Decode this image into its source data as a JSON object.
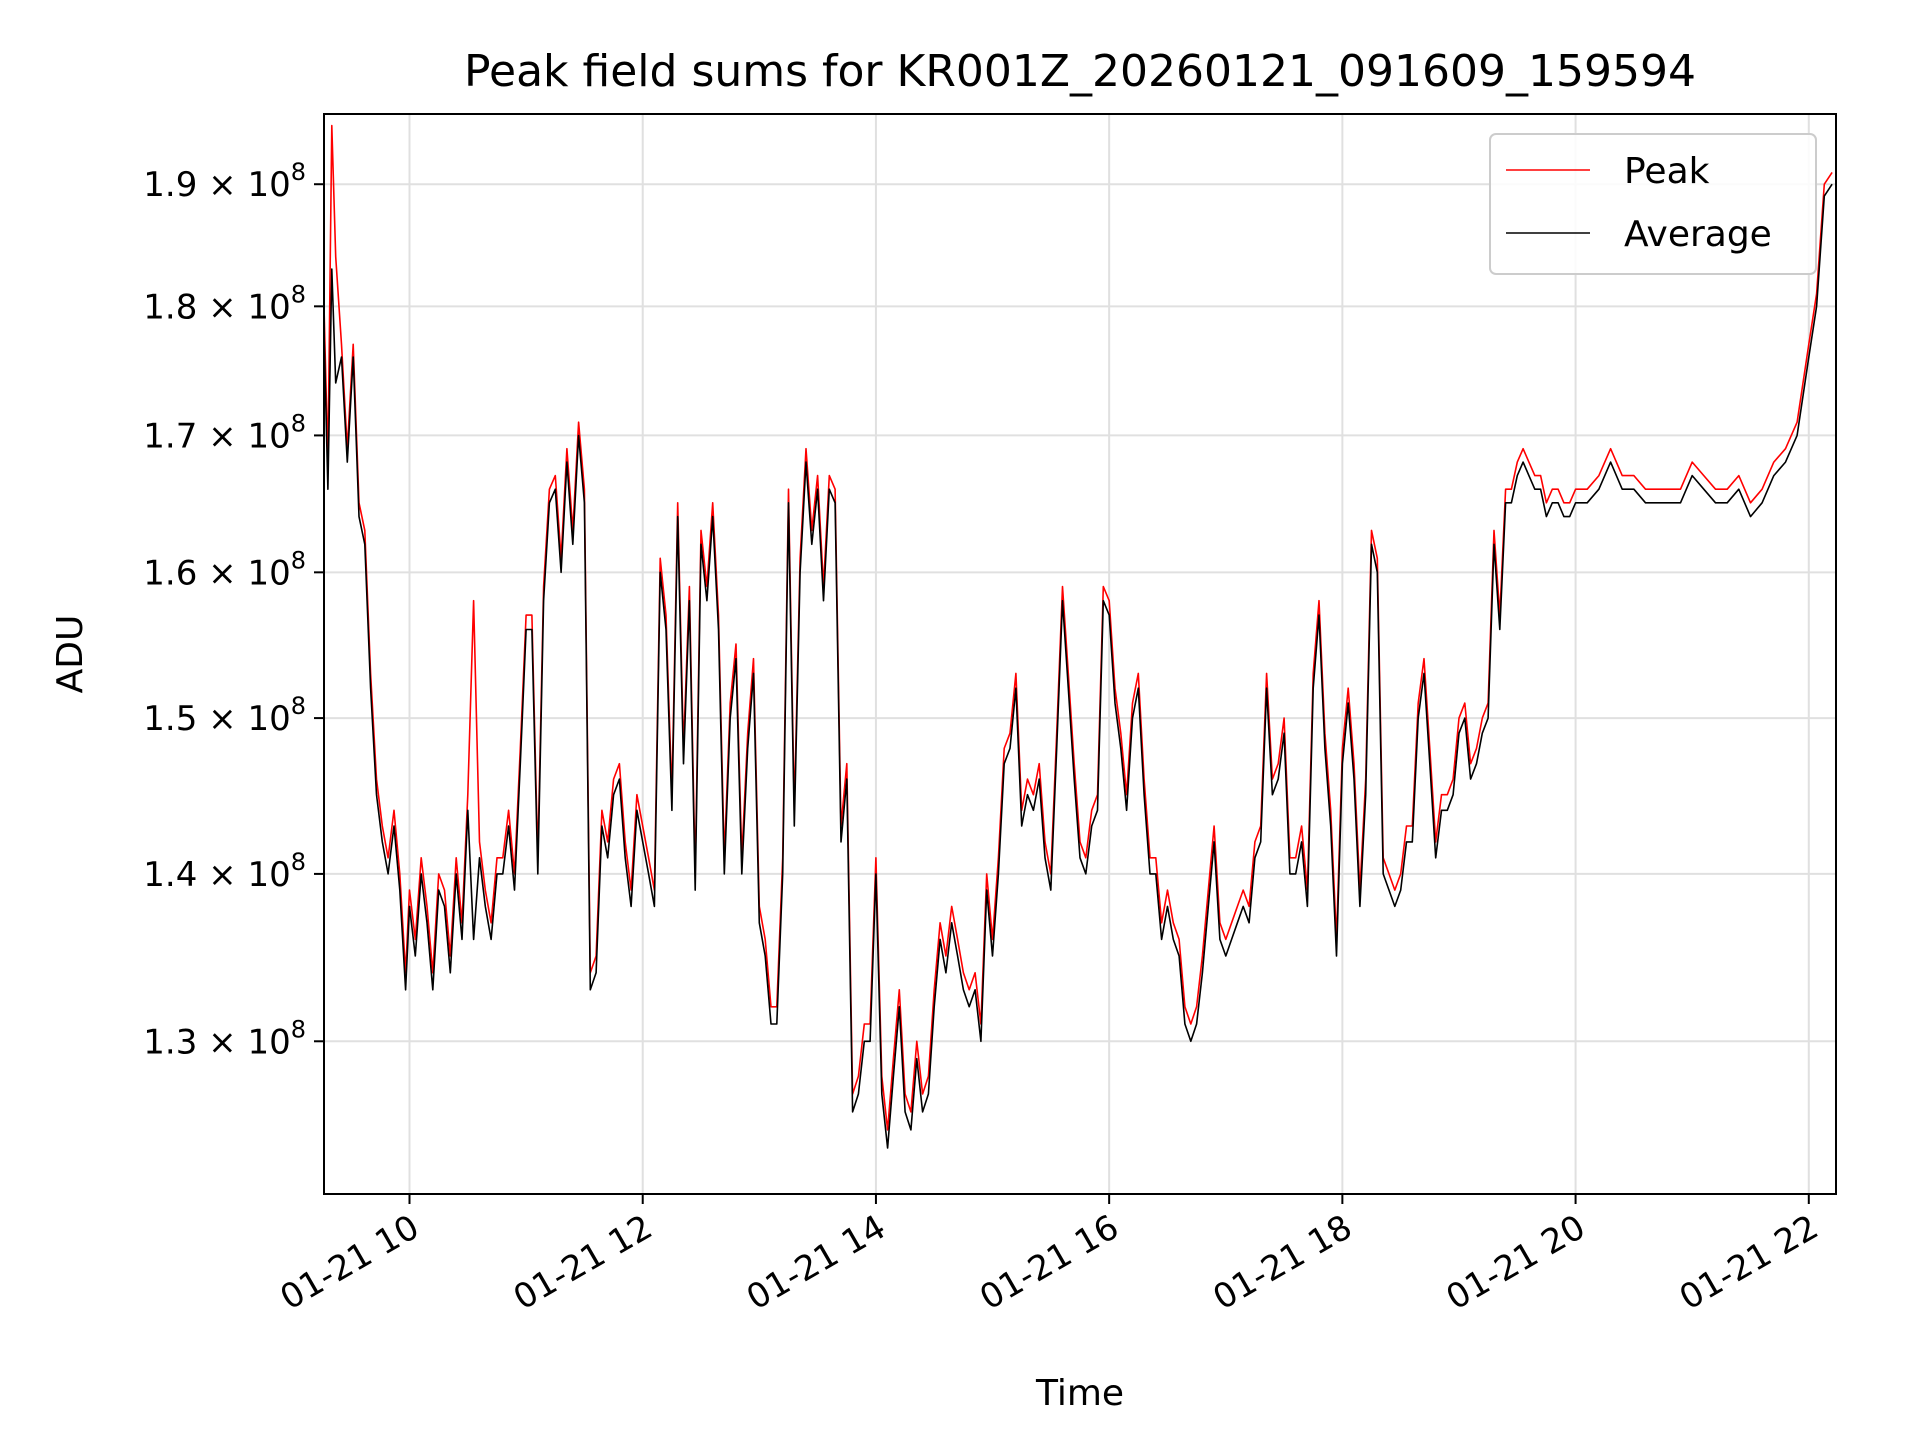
{
  "chart_data": {
    "type": "line",
    "title": "Peak field sums for KR001Z_20260121_091609_159594",
    "xlabel": "Time",
    "ylabel": "ADU",
    "y_scale": "log",
    "ylim": [
      121500000,
      196000000
    ],
    "xlim": [
      "01-21 09:16",
      "01-21 22:14"
    ],
    "grid": true,
    "legend_position": "top-right",
    "x_ticks": [
      "01-21 10",
      "01-21 12",
      "01-21 14",
      "01-21 16",
      "01-21 18",
      "01-21 20",
      "01-21 22"
    ],
    "y_ticks": [
      {
        "mantissa": "1.3",
        "exponent": "8",
        "value": 130000000
      },
      {
        "mantissa": "1.4",
        "exponent": "8",
        "value": 140000000
      },
      {
        "mantissa": "1.5",
        "exponent": "8",
        "value": 150000000
      },
      {
        "mantissa": "1.6",
        "exponent": "8",
        "value": 160000000
      },
      {
        "mantissa": "1.7",
        "exponent": "8",
        "value": 170000000
      },
      {
        "mantissa": "1.8",
        "exponent": "8",
        "value": 180000000
      },
      {
        "mantissa": "1.9",
        "exponent": "8",
        "value": 190000000
      }
    ],
    "series": [
      {
        "name": "Peak",
        "color": "#ff0000"
      },
      {
        "name": "Average",
        "color": "#000000"
      }
    ],
    "data": {
      "x": [
        "01-21 09:16",
        "01-21 09:18",
        "01-21 09:20",
        "01-21 09:22",
        "01-21 09:25",
        "01-21 09:28",
        "01-21 09:31",
        "01-21 09:34",
        "01-21 09:37",
        "01-21 09:40",
        "01-21 09:43",
        "01-21 09:46",
        "01-21 09:49",
        "01-21 09:52",
        "01-21 09:55",
        "01-21 09:58",
        "01-21 10:00",
        "01-21 10:03",
        "01-21 10:06",
        "01-21 10:09",
        "01-21 10:12",
        "01-21 10:15",
        "01-21 10:18",
        "01-21 10:21",
        "01-21 10:24",
        "01-21 10:27",
        "01-21 10:30",
        "01-21 10:33",
        "01-21 10:36",
        "01-21 10:39",
        "01-21 10:42",
        "01-21 10:45",
        "01-21 10:48",
        "01-21 10:51",
        "01-21 10:54",
        "01-21 10:57",
        "01-21 11:00",
        "01-21 11:03",
        "01-21 11:06",
        "01-21 11:09",
        "01-21 11:12",
        "01-21 11:15",
        "01-21 11:18",
        "01-21 11:21",
        "01-21 11:24",
        "01-21 11:27",
        "01-21 11:30",
        "01-21 11:33",
        "01-21 11:36",
        "01-21 11:39",
        "01-21 11:42",
        "01-21 11:45",
        "01-21 11:48",
        "01-21 11:51",
        "01-21 11:54",
        "01-21 11:57",
        "01-21 12:00",
        "01-21 12:03",
        "01-21 12:06",
        "01-21 12:09",
        "01-21 12:12",
        "01-21 12:15",
        "01-21 12:18",
        "01-21 12:21",
        "01-21 12:24",
        "01-21 12:27",
        "01-21 12:30",
        "01-21 12:33",
        "01-21 12:36",
        "01-21 12:39",
        "01-21 12:42",
        "01-21 12:45",
        "01-21 12:48",
        "01-21 12:51",
        "01-21 12:54",
        "01-21 12:57",
        "01-21 13:00",
        "01-21 13:03",
        "01-21 13:06",
        "01-21 13:09",
        "01-21 13:12",
        "01-21 13:15",
        "01-21 13:18",
        "01-21 13:21",
        "01-21 13:24",
        "01-21 13:27",
        "01-21 13:30",
        "01-21 13:33",
        "01-21 13:36",
        "01-21 13:39",
        "01-21 13:42",
        "01-21 13:45",
        "01-21 13:48",
        "01-21 13:51",
        "01-21 13:54",
        "01-21 13:57",
        "01-21 14:00",
        "01-21 14:03",
        "01-21 14:06",
        "01-21 14:09",
        "01-21 14:12",
        "01-21 14:15",
        "01-21 14:18",
        "01-21 14:21",
        "01-21 14:24",
        "01-21 14:27",
        "01-21 14:30",
        "01-21 14:33",
        "01-21 14:36",
        "01-21 14:39",
        "01-21 14:42",
        "01-21 14:45",
        "01-21 14:48",
        "01-21 14:51",
        "01-21 14:54",
        "01-21 14:57",
        "01-21 15:00",
        "01-21 15:03",
        "01-21 15:06",
        "01-21 15:09",
        "01-21 15:12",
        "01-21 15:15",
        "01-21 15:18",
        "01-21 15:21",
        "01-21 15:24",
        "01-21 15:27",
        "01-21 15:30",
        "01-21 15:33",
        "01-21 15:36",
        "01-21 15:39",
        "01-21 15:42",
        "01-21 15:45",
        "01-21 15:48",
        "01-21 15:51",
        "01-21 15:54",
        "01-21 15:57",
        "01-21 16:00",
        "01-21 16:03",
        "01-21 16:06",
        "01-21 16:09",
        "01-21 16:12",
        "01-21 16:15",
        "01-21 16:18",
        "01-21 16:21",
        "01-21 16:24",
        "01-21 16:27",
        "01-21 16:30",
        "01-21 16:33",
        "01-21 16:36",
        "01-21 16:39",
        "01-21 16:42",
        "01-21 16:45",
        "01-21 16:48",
        "01-21 16:51",
        "01-21 16:54",
        "01-21 16:57",
        "01-21 17:00",
        "01-21 17:03",
        "01-21 17:06",
        "01-21 17:09",
        "01-21 17:12",
        "01-21 17:15",
        "01-21 17:18",
        "01-21 17:21",
        "01-21 17:24",
        "01-21 17:27",
        "01-21 17:30",
        "01-21 17:33",
        "01-21 17:36",
        "01-21 17:39",
        "01-21 17:42",
        "01-21 17:45",
        "01-21 17:48",
        "01-21 17:51",
        "01-21 17:54",
        "01-21 17:57",
        "01-21 18:00",
        "01-21 18:03",
        "01-21 18:06",
        "01-21 18:09",
        "01-21 18:12",
        "01-21 18:15",
        "01-21 18:18",
        "01-21 18:21",
        "01-21 18:24",
        "01-21 18:27",
        "01-21 18:30",
        "01-21 18:33",
        "01-21 18:36",
        "01-21 18:39",
        "01-21 18:42",
        "01-21 18:45",
        "01-21 18:48",
        "01-21 18:51",
        "01-21 18:54",
        "01-21 18:57",
        "01-21 19:00",
        "01-21 19:03",
        "01-21 19:06",
        "01-21 19:09",
        "01-21 19:12",
        "01-21 19:15",
        "01-21 19:18",
        "01-21 19:21",
        "01-21 19:24",
        "01-21 19:27",
        "01-21 19:30",
        "01-21 19:33",
        "01-21 19:36",
        "01-21 19:39",
        "01-21 19:42",
        "01-21 19:45",
        "01-21 19:48",
        "01-21 19:51",
        "01-21 19:54",
        "01-21 19:57",
        "01-21 20:00",
        "01-21 20:06",
        "01-21 20:12",
        "01-21 20:18",
        "01-21 20:24",
        "01-21 20:30",
        "01-21 20:36",
        "01-21 20:42",
        "01-21 20:48",
        "01-21 20:54",
        "01-21 21:00",
        "01-21 21:06",
        "01-21 21:12",
        "01-21 21:18",
        "01-21 21:24",
        "01-21 21:30",
        "01-21 21:36",
        "01-21 21:42",
        "01-21 21:48",
        "01-21 21:54",
        "01-21 22:00",
        "01-21 22:04",
        "01-21 22:08",
        "01-21 22:12",
        "01-21 22:14"
      ],
      "average": [
        178,
        166,
        183,
        174,
        176,
        168,
        176,
        164,
        162,
        152,
        145,
        142,
        140,
        143,
        139,
        133,
        138,
        135,
        140,
        137,
        133,
        139,
        138,
        134,
        140,
        136,
        144,
        136,
        141,
        138,
        136,
        140,
        140,
        143,
        139,
        147,
        156,
        156,
        140,
        158,
        165,
        166,
        160,
        168,
        162,
        170,
        165,
        133,
        134,
        143,
        141,
        145,
        146,
        141,
        138,
        144,
        142,
        140,
        138,
        160,
        156,
        144,
        164,
        147,
        158,
        139,
        162,
        158,
        164,
        156,
        140,
        150,
        154,
        140,
        148,
        153,
        137,
        135,
        131,
        131,
        140,
        165,
        143,
        160,
        168,
        162,
        166,
        158,
        166,
        165,
        142,
        146,
        126,
        127,
        130,
        130,
        140,
        127,
        124,
        128,
        132,
        126,
        125,
        129,
        126,
        127,
        132,
        136,
        134,
        137,
        135,
        133,
        132,
        133,
        130,
        139,
        135,
        140,
        147,
        148,
        152,
        143,
        145,
        144,
        146,
        141,
        139,
        148,
        158,
        152,
        146,
        141,
        140,
        143,
        144,
        158,
        157,
        151,
        148,
        144,
        150,
        152,
        145,
        140,
        140,
        136,
        138,
        136,
        135,
        131,
        130,
        131,
        134,
        138,
        142,
        136,
        135,
        136,
        137,
        138,
        137,
        141,
        142,
        152,
        145,
        146,
        149,
        140,
        140,
        142,
        138,
        152,
        157,
        148,
        143,
        135,
        147,
        151,
        146,
        138,
        145,
        162,
        160,
        140,
        139,
        138,
        139,
        142,
        142,
        150,
        153,
        147,
        141,
        144,
        144,
        145,
        149,
        150,
        146,
        147,
        149,
        150,
        162,
        156,
        165,
        165,
        167,
        168,
        167,
        166,
        166,
        164,
        165,
        165,
        164,
        164,
        165,
        165,
        166,
        168,
        166,
        166,
        165,
        165,
        165,
        165,
        167,
        166,
        165,
        165,
        166,
        164,
        165,
        167,
        168,
        170,
        176,
        180,
        189,
        190
      ],
      "peak": [
        180,
        168,
        195,
        184,
        177,
        169,
        177,
        165,
        163,
        153,
        146,
        143,
        141,
        144,
        140,
        134,
        139,
        136,
        141,
        138,
        134,
        140,
        139,
        135,
        141,
        137,
        145,
        158,
        142,
        139,
        137,
        141,
        141,
        144,
        140,
        148,
        157,
        157,
        141,
        159,
        166,
        167,
        161,
        169,
        163,
        171,
        166,
        134,
        135,
        144,
        142,
        146,
        147,
        142,
        139,
        145,
        143,
        141,
        139,
        161,
        157,
        145,
        165,
        148,
        159,
        140,
        163,
        159,
        165,
        157,
        141,
        151,
        155,
        141,
        149,
        154,
        138,
        136,
        132,
        132,
        141,
        166,
        144,
        161,
        169,
        163,
        167,
        159,
        167,
        166,
        143,
        147,
        127,
        128,
        131,
        131,
        141,
        128,
        125,
        129,
        133,
        127,
        126,
        130,
        127,
        128,
        133,
        137,
        135,
        138,
        136,
        134,
        133,
        134,
        131,
        140,
        136,
        141,
        148,
        149,
        153,
        144,
        146,
        145,
        147,
        142,
        140,
        149,
        159,
        153,
        147,
        142,
        141,
        144,
        145,
        159,
        158,
        152,
        149,
        145,
        151,
        153,
        146,
        141,
        141,
        137,
        139,
        137,
        136,
        132,
        131,
        132,
        135,
        139,
        143,
        137,
        136,
        137,
        138,
        139,
        138,
        142,
        143,
        153,
        146,
        147,
        150,
        141,
        141,
        143,
        139,
        153,
        158,
        149,
        144,
        136,
        148,
        152,
        147,
        139,
        146,
        163,
        161,
        141,
        140,
        139,
        140,
        143,
        143,
        151,
        154,
        148,
        142,
        145,
        145,
        146,
        150,
        151,
        147,
        148,
        150,
        151,
        163,
        157,
        166,
        166,
        168,
        169,
        168,
        167,
        167,
        165,
        166,
        166,
        165,
        165,
        166,
        166,
        167,
        169,
        167,
        167,
        166,
        166,
        166,
        166,
        168,
        167,
        166,
        166,
        167,
        165,
        166,
        168,
        169,
        171,
        177,
        181,
        190,
        191
      ]
    }
  }
}
